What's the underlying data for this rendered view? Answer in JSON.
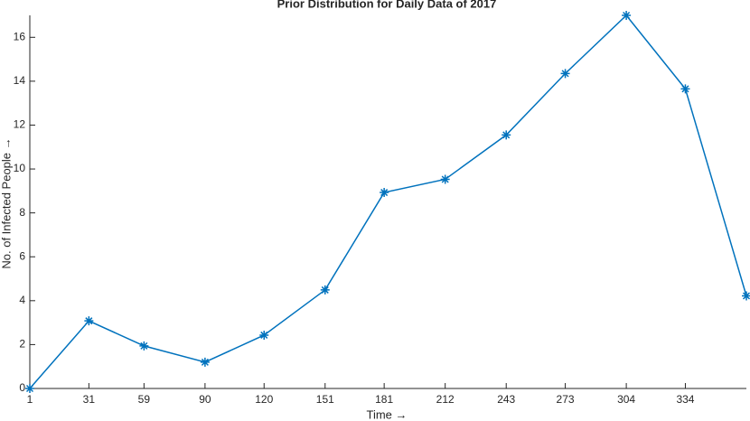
{
  "chart_data": {
    "type": "line",
    "title": "Prior Distribution for Daily Data of 2017",
    "x_label": "Time →",
    "y_label": "No. of Infected People →",
    "x": [
      1,
      31,
      59,
      90,
      120,
      151,
      181,
      212,
      243,
      273,
      304,
      334,
      365
    ],
    "values": [
      0,
      3.08,
      1.94,
      1.2,
      2.43,
      4.49,
      8.93,
      9.53,
      11.55,
      14.35,
      17,
      13.65,
      4.22
    ],
    "color": "#0072bd",
    "xlim": [
      1,
      365
    ],
    "xticks": [
      1,
      31,
      59,
      90,
      120,
      151,
      181,
      212,
      243,
      273,
      304,
      334
    ],
    "ylim": [
      0,
      17
    ],
    "yticks": [
      0,
      2,
      4,
      6,
      8,
      10,
      12,
      14,
      16
    ]
  }
}
